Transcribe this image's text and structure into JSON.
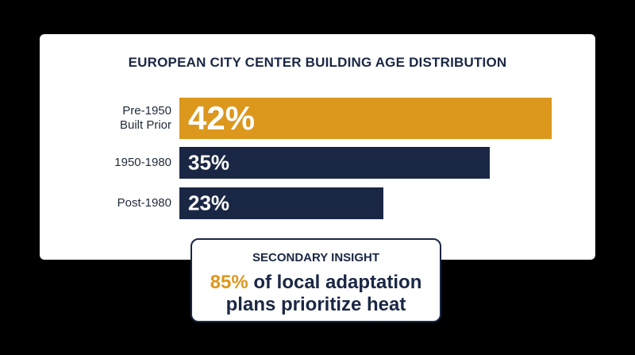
{
  "chart_data": {
    "type": "bar",
    "orientation": "horizontal",
    "title": "EUROPEAN CITY CENTER BUILDING AGE DISTRIBUTION",
    "categories": [
      [
        "Pre-1950",
        "Built Prior"
      ],
      [
        "1950-1980"
      ],
      [
        "Post-1980"
      ]
    ],
    "values": [
      42,
      35,
      23
    ],
    "value_labels": [
      "42%",
      "35%",
      "23%"
    ],
    "xlim": [
      0,
      42
    ],
    "grid": false,
    "colors": [
      "#dc971d",
      "#1a2744",
      "#1a2744"
    ]
  },
  "insight": {
    "kicker": "SECONDARY INSIGHT",
    "highlight": "85%",
    "line1_rest": " of local adaptation",
    "line2": "plans prioritize heat"
  },
  "colors": {
    "background": "#000000",
    "card": "#ffffff",
    "navy": "#1a2744",
    "accent": "#dc971d"
  }
}
